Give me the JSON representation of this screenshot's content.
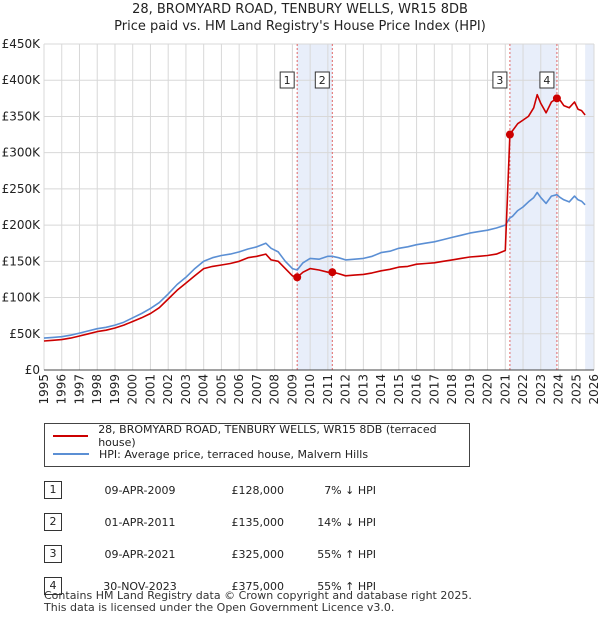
{
  "title_line1": "28, BROMYARD ROAD, TENBURY WELLS, WR15 8DB",
  "title_line2": "Price paid vs. HM Land Registry's House Price Index (HPI)",
  "chart_data": {
    "type": "line",
    "xlim": [
      1995,
      2026
    ],
    "ylim": [
      0,
      450000
    ],
    "x_ticks": [
      1995,
      1996,
      1997,
      1998,
      1999,
      2000,
      2001,
      2002,
      2003,
      2004,
      2005,
      2006,
      2007,
      2008,
      2009,
      2010,
      2011,
      2012,
      2013,
      2014,
      2015,
      2016,
      2017,
      2018,
      2019,
      2020,
      2021,
      2022,
      2023,
      2024,
      2025,
      2026
    ],
    "y_ticks": [
      0,
      50000,
      100000,
      150000,
      200000,
      250000,
      300000,
      350000,
      400000,
      450000
    ],
    "y_tick_labels": [
      "£0",
      "£50K",
      "£100K",
      "£150K",
      "£200K",
      "£250K",
      "£300K",
      "£350K",
      "£400K",
      "£450K"
    ],
    "series": [
      {
        "name": "28, BROMYARD ROAD, TENBURY WELLS, WR15 8DB (terraced house)",
        "color": "#cc0000",
        "x": [
          1995.0,
          1995.5,
          1996.0,
          1996.5,
          1997.0,
          1997.5,
          1998.0,
          1998.5,
          1999.0,
          1999.5,
          2000.0,
          2000.5,
          2001.0,
          2001.5,
          2002.0,
          2002.5,
          2003.0,
          2003.5,
          2004.0,
          2004.5,
          2005.0,
          2005.5,
          2006.0,
          2006.5,
          2007.0,
          2007.5,
          2007.8,
          2008.2,
          2008.6,
          2009.0,
          2009.27,
          2009.6,
          2010.0,
          2010.5,
          2011.0,
          2011.25,
          2011.6,
          2012.0,
          2012.5,
          2013.0,
          2013.5,
          2014.0,
          2014.5,
          2015.0,
          2015.5,
          2016.0,
          2016.5,
          2017.0,
          2017.5,
          2018.0,
          2018.5,
          2019.0,
          2019.5,
          2020.0,
          2020.5,
          2021.0,
          2021.26,
          2021.4,
          2021.7,
          2022.0,
          2022.3,
          2022.6,
          2022.8,
          2023.0,
          2023.3,
          2023.6,
          2023.91,
          2024.1,
          2024.3,
          2024.6,
          2024.9,
          2025.1,
          2025.3,
          2025.5
        ],
        "values": [
          40000,
          41000,
          42000,
          44000,
          47000,
          50000,
          53000,
          55000,
          58000,
          62000,
          67000,
          72000,
          78000,
          86000,
          98000,
          110000,
          120000,
          130000,
          140000,
          143000,
          145000,
          147000,
          150000,
          155000,
          157000,
          160000,
          152000,
          150000,
          140000,
          130000,
          128000,
          135000,
          140000,
          138000,
          135000,
          135000,
          133000,
          130000,
          131000,
          132000,
          134000,
          137000,
          139000,
          142000,
          143000,
          146000,
          147000,
          148000,
          150000,
          152000,
          154000,
          156000,
          157000,
          158000,
          160000,
          165000,
          325000,
          330000,
          340000,
          345000,
          350000,
          362000,
          380000,
          368000,
          355000,
          370000,
          375000,
          372000,
          365000,
          362000,
          370000,
          360000,
          358000,
          352000
        ]
      },
      {
        "name": "HPI: Average price, terraced house, Malvern Hills",
        "color": "#5b8fd4",
        "x": [
          1995.0,
          1995.5,
          1996.0,
          1996.5,
          1997.0,
          1997.5,
          1998.0,
          1998.5,
          1999.0,
          1999.5,
          2000.0,
          2000.5,
          2001.0,
          2001.5,
          2002.0,
          2002.5,
          2003.0,
          2003.5,
          2004.0,
          2004.5,
          2005.0,
          2005.5,
          2006.0,
          2006.5,
          2007.0,
          2007.5,
          2007.8,
          2008.2,
          2008.6,
          2009.0,
          2009.27,
          2009.6,
          2010.0,
          2010.5,
          2011.0,
          2011.25,
          2011.6,
          2012.0,
          2012.5,
          2013.0,
          2013.5,
          2014.0,
          2014.5,
          2015.0,
          2015.5,
          2016.0,
          2016.5,
          2017.0,
          2017.5,
          2018.0,
          2018.5,
          2019.0,
          2019.5,
          2020.0,
          2020.5,
          2021.0,
          2021.26,
          2021.4,
          2021.7,
          2022.0,
          2022.3,
          2022.6,
          2022.8,
          2023.0,
          2023.3,
          2023.6,
          2023.91,
          2024.1,
          2024.3,
          2024.6,
          2024.9,
          2025.1,
          2025.3,
          2025.5
        ],
        "values": [
          44000,
          45000,
          46000,
          48000,
          51000,
          54000,
          57000,
          59000,
          62000,
          66000,
          72000,
          78000,
          85000,
          93000,
          105000,
          118000,
          128000,
          140000,
          150000,
          155000,
          158000,
          160000,
          163000,
          167000,
          170000,
          175000,
          168000,
          163000,
          150000,
          140000,
          138000,
          148000,
          154000,
          153000,
          157000,
          157000,
          155000,
          152000,
          153000,
          154000,
          157000,
          162000,
          164000,
          168000,
          170000,
          173000,
          175000,
          177000,
          180000,
          183000,
          186000,
          189000,
          191000,
          193000,
          196000,
          200000,
          210000,
          212000,
          220000,
          225000,
          232000,
          238000,
          245000,
          238000,
          230000,
          240000,
          242000,
          238000,
          235000,
          232000,
          240000,
          235000,
          233000,
          228000
        ]
      }
    ],
    "transactions": [
      {
        "id": "1",
        "x": 2009.27,
        "value": 128000
      },
      {
        "id": "2",
        "x": 2011.25,
        "value": 135000
      },
      {
        "id": "3",
        "x": 2021.26,
        "value": 325000
      },
      {
        "id": "4",
        "x": 2023.91,
        "value": 375000
      }
    ],
    "shaded_ranges": [
      [
        2009.27,
        2011.25
      ],
      [
        2021.26,
        2023.91
      ],
      [
        2025.5,
        2026
      ]
    ]
  },
  "legend": {
    "red_label": "28, BROMYARD ROAD, TENBURY WELLS, WR15 8DB (terraced house)",
    "blue_label": "HPI: Average price, terraced house, Malvern Hills"
  },
  "table": [
    {
      "num": "1",
      "date": "09-APR-2009",
      "price": "£128,000",
      "hpi": "7% ↓ HPI"
    },
    {
      "num": "2",
      "date": "01-APR-2011",
      "price": "£135,000",
      "hpi": "14% ↓ HPI"
    },
    {
      "num": "3",
      "date": "09-APR-2021",
      "price": "£325,000",
      "hpi": "55% ↑ HPI"
    },
    {
      "num": "4",
      "date": "30-NOV-2023",
      "price": "£375,000",
      "hpi": "55% ↑ HPI"
    }
  ],
  "footer_line1": "Contains HM Land Registry data © Crown copyright and database right 2025.",
  "footer_line2": "This data is licensed under the Open Government Licence v3.0."
}
